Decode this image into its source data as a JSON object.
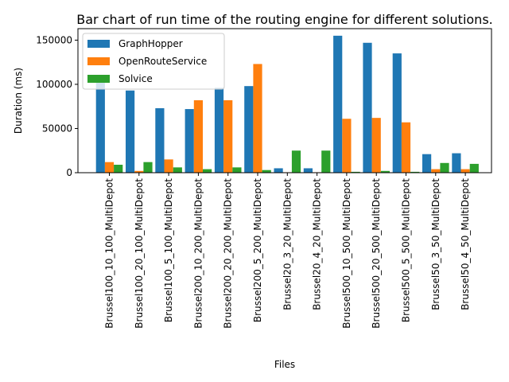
{
  "chart_data": {
    "type": "bar",
    "title": "Bar chart of run time of the routing engine for different solutions.",
    "xlabel": "Files",
    "ylabel": "Duration (ms)",
    "ylim": [
      0,
      163000
    ],
    "yticks": [
      0,
      50000,
      100000,
      150000
    ],
    "grid": false,
    "legend_position": "top-left",
    "categories": [
      "Brussel100_10_100_MultiDepot",
      "Brussel100_20_100_MultiDepot",
      "Brussel100_5_100_MultiDepot",
      "Brussel200_10_200_MultiDepot",
      "Brussel200_20_200_MultiDepot",
      "Brussel200_5_200_MultiDepot",
      "Brussel20_3_20_MultiDepot",
      "Brussel20_4_20_MultiDepot",
      "Brussel500_10_500_MultiDepot",
      "Brussel500_20_500_MultiDepot",
      "Brussel500_5_500_MultiDepot",
      "Brussel50_3_50_MultiDepot",
      "Brussel50_4_50_MultiDepot"
    ],
    "series": [
      {
        "name": "GraphHopper",
        "color": "#1f77b4",
        "values": [
          104000,
          93000,
          73000,
          72000,
          96000,
          98000,
          5000,
          5000,
          155000,
          147000,
          135000,
          21000,
          22000
        ]
      },
      {
        "name": "OpenRouteService",
        "color": "#ff7f0e",
        "values": [
          12000,
          2000,
          15000,
          82000,
          82000,
          123000,
          500,
          500,
          61000,
          62000,
          57000,
          4000,
          4000
        ]
      },
      {
        "name": "Solvice",
        "color": "#2ca02c",
        "values": [
          9000,
          12000,
          6000,
          4000,
          6000,
          3000,
          25000,
          25000,
          1000,
          2000,
          1000,
          11000,
          10000
        ]
      }
    ]
  }
}
